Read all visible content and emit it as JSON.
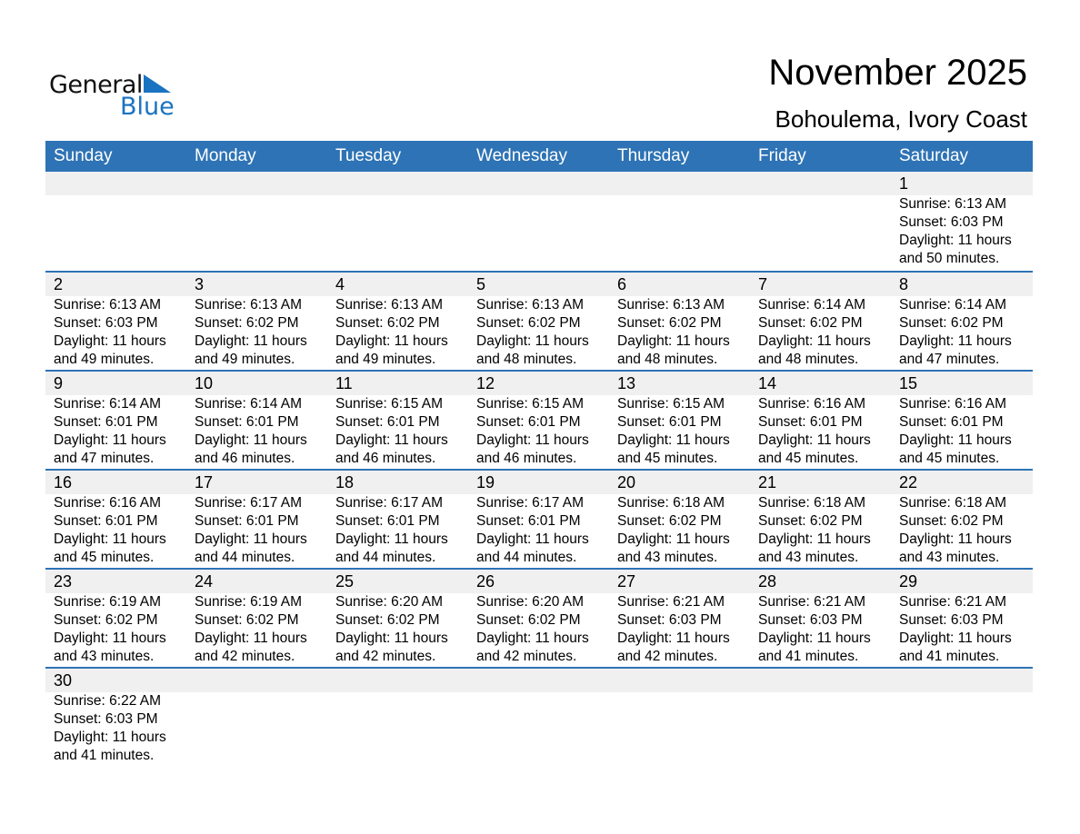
{
  "logo": {
    "word1": "General",
    "word2": "Blue"
  },
  "title": "November 2025",
  "location": "Bohoulema, Ivory Coast",
  "colors": {
    "header": "#2e73b5",
    "band": "#f0f0f0",
    "logo_blue": "#1a73c0"
  },
  "weekdays": [
    "Sunday",
    "Monday",
    "Tuesday",
    "Wednesday",
    "Thursday",
    "Friday",
    "Saturday"
  ],
  "weeks": [
    [
      null,
      null,
      null,
      null,
      null,
      null,
      {
        "day": "1",
        "sunrise": "Sunrise: 6:13 AM",
        "sunset": "Sunset: 6:03 PM",
        "daylight": "Daylight: 11 hours",
        "minutes": "and 50 minutes."
      }
    ],
    [
      {
        "day": "2",
        "sunrise": "Sunrise: 6:13 AM",
        "sunset": "Sunset: 6:03 PM",
        "daylight": "Daylight: 11 hours",
        "minutes": "and 49 minutes."
      },
      {
        "day": "3",
        "sunrise": "Sunrise: 6:13 AM",
        "sunset": "Sunset: 6:02 PM",
        "daylight": "Daylight: 11 hours",
        "minutes": "and 49 minutes."
      },
      {
        "day": "4",
        "sunrise": "Sunrise: 6:13 AM",
        "sunset": "Sunset: 6:02 PM",
        "daylight": "Daylight: 11 hours",
        "minutes": "and 49 minutes."
      },
      {
        "day": "5",
        "sunrise": "Sunrise: 6:13 AM",
        "sunset": "Sunset: 6:02 PM",
        "daylight": "Daylight: 11 hours",
        "minutes": "and 48 minutes."
      },
      {
        "day": "6",
        "sunrise": "Sunrise: 6:13 AM",
        "sunset": "Sunset: 6:02 PM",
        "daylight": "Daylight: 11 hours",
        "minutes": "and 48 minutes."
      },
      {
        "day": "7",
        "sunrise": "Sunrise: 6:14 AM",
        "sunset": "Sunset: 6:02 PM",
        "daylight": "Daylight: 11 hours",
        "minutes": "and 48 minutes."
      },
      {
        "day": "8",
        "sunrise": "Sunrise: 6:14 AM",
        "sunset": "Sunset: 6:02 PM",
        "daylight": "Daylight: 11 hours",
        "minutes": "and 47 minutes."
      }
    ],
    [
      {
        "day": "9",
        "sunrise": "Sunrise: 6:14 AM",
        "sunset": "Sunset: 6:01 PM",
        "daylight": "Daylight: 11 hours",
        "minutes": "and 47 minutes."
      },
      {
        "day": "10",
        "sunrise": "Sunrise: 6:14 AM",
        "sunset": "Sunset: 6:01 PM",
        "daylight": "Daylight: 11 hours",
        "minutes": "and 46 minutes."
      },
      {
        "day": "11",
        "sunrise": "Sunrise: 6:15 AM",
        "sunset": "Sunset: 6:01 PM",
        "daylight": "Daylight: 11 hours",
        "minutes": "and 46 minutes."
      },
      {
        "day": "12",
        "sunrise": "Sunrise: 6:15 AM",
        "sunset": "Sunset: 6:01 PM",
        "daylight": "Daylight: 11 hours",
        "minutes": "and 46 minutes."
      },
      {
        "day": "13",
        "sunrise": "Sunrise: 6:15 AM",
        "sunset": "Sunset: 6:01 PM",
        "daylight": "Daylight: 11 hours",
        "minutes": "and 45 minutes."
      },
      {
        "day": "14",
        "sunrise": "Sunrise: 6:16 AM",
        "sunset": "Sunset: 6:01 PM",
        "daylight": "Daylight: 11 hours",
        "minutes": "and 45 minutes."
      },
      {
        "day": "15",
        "sunrise": "Sunrise: 6:16 AM",
        "sunset": "Sunset: 6:01 PM",
        "daylight": "Daylight: 11 hours",
        "minutes": "and 45 minutes."
      }
    ],
    [
      {
        "day": "16",
        "sunrise": "Sunrise: 6:16 AM",
        "sunset": "Sunset: 6:01 PM",
        "daylight": "Daylight: 11 hours",
        "minutes": "and 45 minutes."
      },
      {
        "day": "17",
        "sunrise": "Sunrise: 6:17 AM",
        "sunset": "Sunset: 6:01 PM",
        "daylight": "Daylight: 11 hours",
        "minutes": "and 44 minutes."
      },
      {
        "day": "18",
        "sunrise": "Sunrise: 6:17 AM",
        "sunset": "Sunset: 6:01 PM",
        "daylight": "Daylight: 11 hours",
        "minutes": "and 44 minutes."
      },
      {
        "day": "19",
        "sunrise": "Sunrise: 6:17 AM",
        "sunset": "Sunset: 6:01 PM",
        "daylight": "Daylight: 11 hours",
        "minutes": "and 44 minutes."
      },
      {
        "day": "20",
        "sunrise": "Sunrise: 6:18 AM",
        "sunset": "Sunset: 6:02 PM",
        "daylight": "Daylight: 11 hours",
        "minutes": "and 43 minutes."
      },
      {
        "day": "21",
        "sunrise": "Sunrise: 6:18 AM",
        "sunset": "Sunset: 6:02 PM",
        "daylight": "Daylight: 11 hours",
        "minutes": "and 43 minutes."
      },
      {
        "day": "22",
        "sunrise": "Sunrise: 6:18 AM",
        "sunset": "Sunset: 6:02 PM",
        "daylight": "Daylight: 11 hours",
        "minutes": "and 43 minutes."
      }
    ],
    [
      {
        "day": "23",
        "sunrise": "Sunrise: 6:19 AM",
        "sunset": "Sunset: 6:02 PM",
        "daylight": "Daylight: 11 hours",
        "minutes": "and 43 minutes."
      },
      {
        "day": "24",
        "sunrise": "Sunrise: 6:19 AM",
        "sunset": "Sunset: 6:02 PM",
        "daylight": "Daylight: 11 hours",
        "minutes": "and 42 minutes."
      },
      {
        "day": "25",
        "sunrise": "Sunrise: 6:20 AM",
        "sunset": "Sunset: 6:02 PM",
        "daylight": "Daylight: 11 hours",
        "minutes": "and 42 minutes."
      },
      {
        "day": "26",
        "sunrise": "Sunrise: 6:20 AM",
        "sunset": "Sunset: 6:02 PM",
        "daylight": "Daylight: 11 hours",
        "minutes": "and 42 minutes."
      },
      {
        "day": "27",
        "sunrise": "Sunrise: 6:21 AM",
        "sunset": "Sunset: 6:03 PM",
        "daylight": "Daylight: 11 hours",
        "minutes": "and 42 minutes."
      },
      {
        "day": "28",
        "sunrise": "Sunrise: 6:21 AM",
        "sunset": "Sunset: 6:03 PM",
        "daylight": "Daylight: 11 hours",
        "minutes": "and 41 minutes."
      },
      {
        "day": "29",
        "sunrise": "Sunrise: 6:21 AM",
        "sunset": "Sunset: 6:03 PM",
        "daylight": "Daylight: 11 hours",
        "minutes": "and 41 minutes."
      }
    ],
    [
      {
        "day": "30",
        "sunrise": "Sunrise: 6:22 AM",
        "sunset": "Sunset: 6:03 PM",
        "daylight": "Daylight: 11 hours",
        "minutes": "and 41 minutes."
      },
      null,
      null,
      null,
      null,
      null,
      null
    ]
  ]
}
